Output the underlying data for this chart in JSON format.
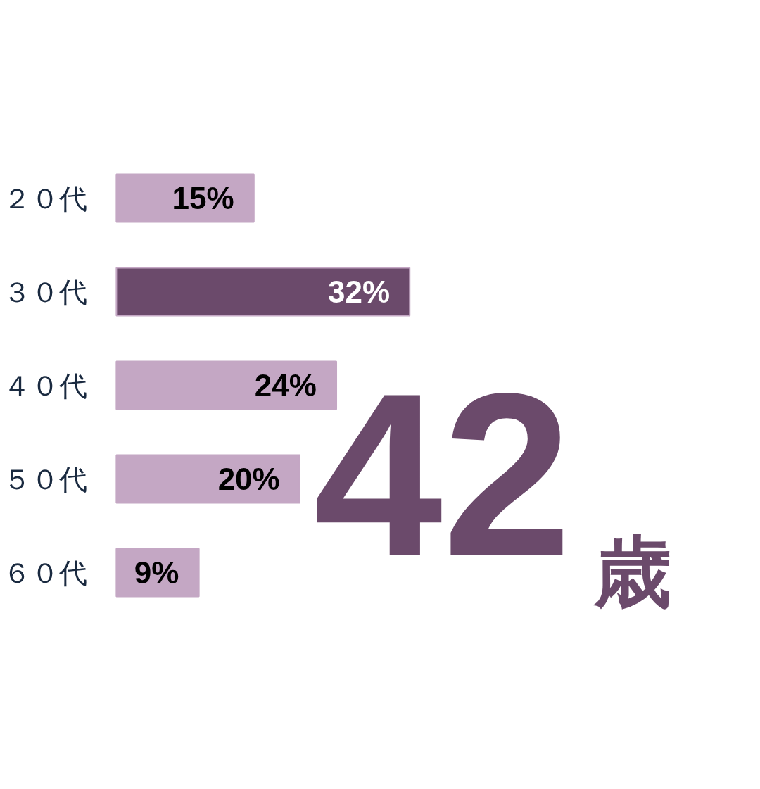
{
  "chart_data": {
    "type": "bar",
    "orientation": "horizontal",
    "categories": [
      "２０代",
      "３０代",
      "４０代",
      "５０代",
      "６０代"
    ],
    "values": [
      15,
      32,
      24,
      20,
      9
    ],
    "colors": [
      "#c4a7c4",
      "#6b4a6b",
      "#c4a7c4",
      "#c4a7c4",
      "#c4a7c4"
    ],
    "value_labels": [
      "15%",
      "32%",
      "24%",
      "20%",
      "9%"
    ],
    "annotations": [
      "42歳"
    ],
    "grid": false
  }
}
